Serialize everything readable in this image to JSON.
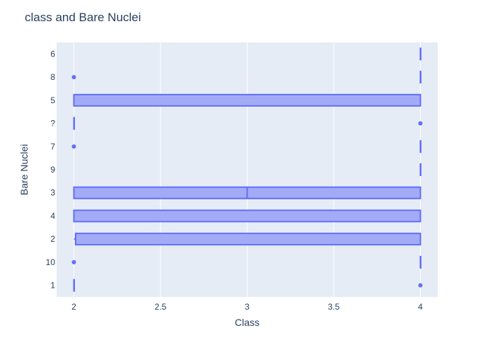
{
  "chart_data": {
    "type": "box",
    "orientation": "horizontal",
    "title": "class and Bare Nuclei",
    "xlabel": "Class",
    "ylabel": "Bare Nuclei",
    "xlim": [
      1.9,
      4.1
    ],
    "x_ticks": [
      2,
      2.5,
      3,
      3.5,
      4
    ],
    "x_tick_labels": [
      "2",
      "2.5",
      "3",
      "3.5",
      "4"
    ],
    "categories": [
      "1",
      "10",
      "2",
      "4",
      "3",
      "9",
      "7",
      "?",
      "5",
      "8",
      "6"
    ],
    "grid": true,
    "legend": "none",
    "colors": {
      "box_line": "#636EFA",
      "box_fill": "#A3ABF7",
      "plot_bg": "#E5ECF6",
      "grid": "#FFFFFF",
      "text": "#2A3F5F"
    },
    "boxes": [
      {
        "category": "1",
        "min": 2,
        "q1": 2,
        "median": 2,
        "q3": 2,
        "max": 2,
        "outliers": [
          4
        ]
      },
      {
        "category": "10",
        "min": 4,
        "q1": 4,
        "median": 4,
        "q3": 4,
        "max": 4,
        "outliers": [
          2
        ]
      },
      {
        "category": "2",
        "min": 2,
        "q1": 2.01,
        "median": 2.01,
        "q3": 4,
        "max": 4,
        "outliers": []
      },
      {
        "category": "4",
        "min": 2,
        "q1": 2,
        "median": 4,
        "q3": 4,
        "max": 4,
        "outliers": []
      },
      {
        "category": "3",
        "min": 2,
        "q1": 2,
        "median": 3,
        "q3": 4,
        "max": 4,
        "outliers": []
      },
      {
        "category": "9",
        "min": 4,
        "q1": 4,
        "median": 4,
        "q3": 4,
        "max": 4,
        "outliers": []
      },
      {
        "category": "7",
        "min": 4,
        "q1": 4,
        "median": 4,
        "q3": 4,
        "max": 4,
        "outliers": [
          2
        ]
      },
      {
        "category": "?",
        "min": 2,
        "q1": 2,
        "median": 2,
        "q3": 2,
        "max": 2,
        "outliers": [
          4
        ]
      },
      {
        "category": "5",
        "min": 2,
        "q1": 2,
        "median": 4,
        "q3": 4,
        "max": 4,
        "outliers": []
      },
      {
        "category": "8",
        "min": 4,
        "q1": 4,
        "median": 4,
        "q3": 4,
        "max": 4,
        "outliers": [
          2
        ]
      },
      {
        "category": "6",
        "min": 4,
        "q1": 4,
        "median": 4,
        "q3": 4,
        "max": 4,
        "outliers": []
      }
    ]
  }
}
